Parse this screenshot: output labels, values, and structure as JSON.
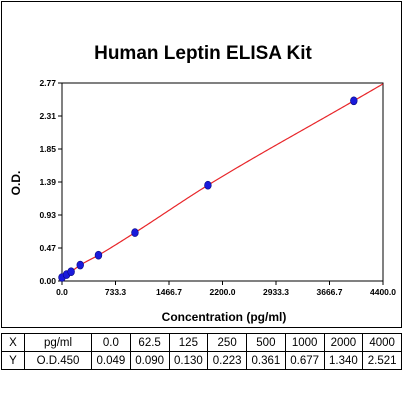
{
  "chart_data": {
    "type": "scatter",
    "title": "Human Leptin ELISA Kit",
    "xlabel": "Concentration (pg/ml)",
    "ylabel": "O.D.",
    "xlim": [
      0,
      4400
    ],
    "ylim": [
      0,
      2.77
    ],
    "x_ticks": [
      "0.0",
      "733.3",
      "1466.7",
      "2200.0",
      "2933.3",
      "3666.7",
      "4400.0"
    ],
    "y_ticks": [
      "0.00",
      "0.47",
      "0.93",
      "1.39",
      "1.85",
      "2.31",
      "2.77"
    ],
    "points": {
      "x": [
        0,
        62.5,
        125,
        250,
        500,
        1000,
        2000,
        4000
      ],
      "y": [
        0.049,
        0.09,
        0.13,
        0.223,
        0.361,
        0.677,
        1.34,
        2.521
      ]
    },
    "point_color": "#1a1adb",
    "curve_color": "#e8262a",
    "grid": false
  },
  "table": {
    "rows": [
      {
        "head": "X",
        "unit": "pg/ml",
        "values": [
          "0.0",
          "62.5",
          "125",
          "250",
          "500",
          "1000",
          "2000",
          "4000"
        ]
      },
      {
        "head": "Y",
        "unit": "O.D.450",
        "values": [
          "0.049",
          "0.090",
          "0.130",
          "0.223",
          "0.361",
          "0.677",
          "1.340",
          "2.521"
        ]
      }
    ]
  }
}
